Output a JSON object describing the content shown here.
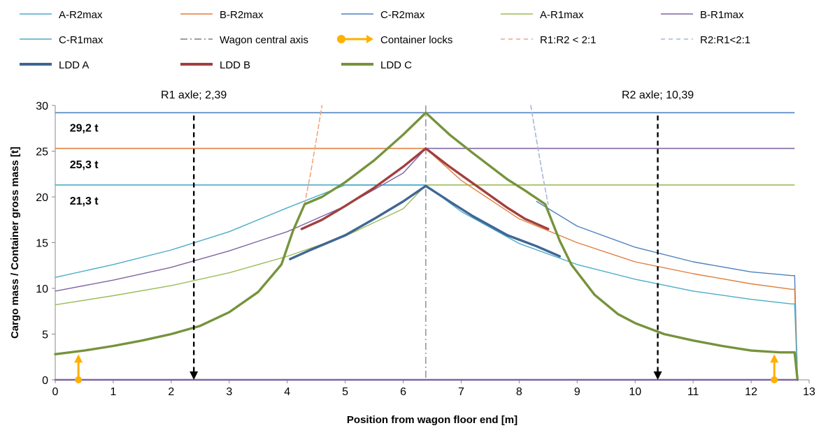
{
  "chart_data": {
    "type": "line",
    "xlabel": "Position from wagon floor end [m]",
    "ylabel": "Cargo mass / Container gross mass [t]",
    "xlim": [
      0,
      13
    ],
    "ylim": [
      0,
      30
    ],
    "x_ticks": [
      0,
      1,
      2,
      3,
      4,
      5,
      6,
      7,
      8,
      9,
      10,
      11,
      12,
      13
    ],
    "y_ticks": [
      0,
      5,
      10,
      15,
      20,
      25,
      30
    ],
    "grid": false,
    "legend_position": "top",
    "legend": [
      {
        "name": "A-R2max",
        "color": "#4bacc6",
        "style": "solid"
      },
      {
        "name": "B-R2max",
        "color": "#e07f3f",
        "style": "solid"
      },
      {
        "name": "C-R2max",
        "color": "#4f81bd",
        "style": "solid"
      },
      {
        "name": "A-R1max",
        "color": "#9bbb59",
        "style": "solid"
      },
      {
        "name": "B-R1max",
        "color": "#8064a2",
        "style": "solid"
      },
      {
        "name": "C-R1max",
        "color": "#4bacc6",
        "style": "solid"
      },
      {
        "name": "Wagon central axis",
        "color": "#7f7f7f",
        "style": "dashdot"
      },
      {
        "name": "Container locks",
        "color": "#ffb000",
        "style": "arrow"
      },
      {
        "name": "R1:R2 < 2:1",
        "color": "#f4a582",
        "style": "dashed"
      },
      {
        "name": "R2:R1<2:1",
        "color": "#a4b8d8",
        "style": "dashed"
      },
      {
        "name": "LDD A",
        "color": "#3f6694",
        "style": "thick"
      },
      {
        "name": "LDD B",
        "color": "#a0403e",
        "style": "thick"
      },
      {
        "name": "LDD C",
        "color": "#76933c",
        "style": "thick"
      }
    ],
    "series": [
      {
        "name": "C-R1max",
        "color": "#4bacc6",
        "width": 1.4,
        "x": [
          0,
          1,
          2,
          3,
          4,
          5,
          6,
          6.39
        ],
        "y": [
          11.2,
          12.6,
          14.2,
          16.2,
          18.8,
          21.3,
          21.3,
          21.3
        ]
      },
      {
        "name": "B-R1max",
        "color": "#8064a2",
        "width": 1.4,
        "x": [
          0,
          1,
          2,
          3,
          4,
          5,
          6,
          6.39
        ],
        "y": [
          9.7,
          10.9,
          12.3,
          14.1,
          16.2,
          19.0,
          22.6,
          25.3
        ]
      },
      {
        "name": "A-R1max",
        "color": "#9bbb59",
        "width": 1.4,
        "x": [
          0,
          1,
          2,
          3,
          4,
          5,
          6,
          6.39
        ],
        "y": [
          8.2,
          9.2,
          10.3,
          11.7,
          13.5,
          15.7,
          18.7,
          21.3
        ]
      },
      {
        "name": "C-R2max",
        "color": "#4f81bd",
        "width": 1.4,
        "x": [
          8.3,
          9,
          10,
          11,
          12,
          12.7,
          12.75,
          12.8
        ],
        "y": [
          19.5,
          16.8,
          14.5,
          12.9,
          11.8,
          11.4,
          11.4,
          0
        ]
      },
      {
        "name": "B-R2max",
        "color": "#e07f3f",
        "width": 1.4,
        "x": [
          6.39,
          7,
          8,
          9,
          10,
          11,
          12,
          12.7,
          12.75,
          12.8
        ],
        "y": [
          25.3,
          21.8,
          17.6,
          15.0,
          12.9,
          11.6,
          10.5,
          9.9,
          9.9,
          0
        ]
      },
      {
        "name": "A-R2max",
        "color": "#4bacc6",
        "width": 1.4,
        "x": [
          6.39,
          7,
          8,
          9,
          10,
          11,
          12,
          12.7,
          12.75,
          12.8
        ],
        "y": [
          21.3,
          18.4,
          14.9,
          12.6,
          11.0,
          9.7,
          8.8,
          8.3,
          8.3,
          0
        ]
      },
      {
        "name": "R1:R2 < 2:1",
        "color": "#f4a582",
        "width": 1.6,
        "dash": "6,4",
        "x": [
          4.3,
          4.4,
          4.5,
          4.6
        ],
        "y": [
          19.2,
          22.5,
          26.2,
          30
        ]
      },
      {
        "name": "R2:R1<2:1",
        "color": "#a4b8d8",
        "width": 1.6,
        "dash": "6,4",
        "x": [
          8.2,
          8.3,
          8.4,
          8.5
        ],
        "y": [
          30,
          26.2,
          22.5,
          19.2
        ]
      },
      {
        "name": "LDD C",
        "color": "#76933c",
        "width": 3.4,
        "x": [
          0,
          0.5,
          1,
          1.5,
          2,
          2.5,
          3,
          3.5,
          3.9,
          4.1,
          4.3,
          4.6,
          5,
          5.5,
          6,
          6.39,
          6.8,
          7.2,
          7.8,
          8.1,
          8.45,
          8.7,
          8.9,
          9.3,
          9.7,
          10,
          10.5,
          11,
          11.5,
          12,
          12.5,
          12.7,
          12.75,
          12.8
        ],
        "y": [
          2.8,
          3.2,
          3.7,
          4.3,
          5.0,
          5.9,
          7.4,
          9.6,
          12.6,
          16.3,
          19.2,
          20.0,
          21.6,
          24.0,
          26.8,
          29.2,
          26.8,
          24.8,
          21.9,
          20.7,
          19.2,
          15.2,
          12.6,
          9.3,
          7.2,
          6.2,
          5.0,
          4.3,
          3.7,
          3.2,
          3.0,
          3.0,
          3.0,
          0
        ]
      },
      {
        "name": "LDD B",
        "color": "#a0403e",
        "width": 3.4,
        "x": [
          4.25,
          4.6,
          5,
          5.5,
          6,
          6.39,
          6.8,
          7.2,
          7.8,
          8.1,
          8.5
        ],
        "y": [
          16.5,
          17.5,
          19.0,
          21.0,
          23.3,
          25.3,
          23.3,
          21.5,
          18.8,
          17.6,
          16.5
        ]
      },
      {
        "name": "LDD A",
        "color": "#3f6694",
        "width": 3.4,
        "x": [
          4.05,
          4.4,
          5,
          5.5,
          6,
          6.39,
          6.8,
          7.2,
          7.8,
          8.3,
          8.7
        ],
        "y": [
          13.2,
          14.2,
          15.8,
          17.6,
          19.5,
          21.2,
          19.5,
          17.9,
          15.8,
          14.6,
          13.5
        ]
      },
      {
        "name": "Zero line",
        "color": "#8064a2",
        "width": 2.6,
        "x": [
          0,
          12.8
        ],
        "y": [
          0,
          0
        ]
      }
    ],
    "hlines": [
      {
        "y": 29.2,
        "color": "#4f81bd",
        "xmin": 0,
        "xmax": 12.75
      },
      {
        "y": 25.3,
        "color": "#e07f3f",
        "xmin": 0,
        "xmax": 6.39
      },
      {
        "y": 25.3,
        "color": "#8064a2",
        "xmin": 6.39,
        "xmax": 12.75
      },
      {
        "y": 21.3,
        "color": "#4bacc6",
        "xmin": 0,
        "xmax": 6.39
      },
      {
        "y": 21.3,
        "color": "#9bbb59",
        "xmin": 6.39,
        "xmax": 12.75
      }
    ],
    "axle_markers": [
      {
        "x": 2.39,
        "label": "R1 axle; 2,39"
      },
      {
        "x": 10.39,
        "label": "R2 axle; 10,39"
      }
    ],
    "central_axis_x": 6.39,
    "lock_positions": [
      0.4,
      12.4
    ],
    "lock_height": 2.8,
    "annotations": [
      {
        "text": "29,2 t",
        "x": 0.25,
        "y": 27.6
      },
      {
        "text": "25,3 t",
        "x": 0.25,
        "y": 23.6
      },
      {
        "text": "21,3 t",
        "x": 0.25,
        "y": 19.6
      }
    ]
  }
}
